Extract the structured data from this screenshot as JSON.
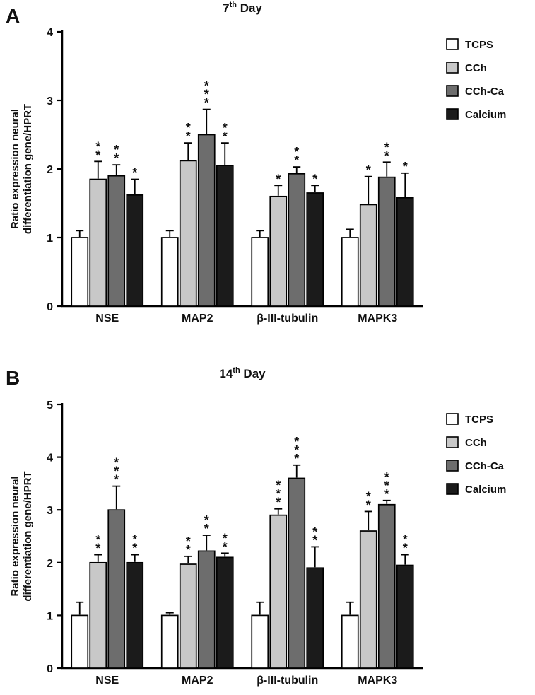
{
  "figure": {
    "description": "Two-panel grouped bar chart of neural differentiation gene expression",
    "panels": [
      {
        "letter": "A",
        "title": "7th Day"
      },
      {
        "letter": "B",
        "title": "14th Day"
      }
    ],
    "legend_items": [
      "TCPS",
      "CCh",
      "CCh-Ca",
      "Calcium"
    ],
    "colors": {
      "TCPS": "#ffffff",
      "CCh": "#c8c8c8",
      "CCh-Ca": "#6d6d6d",
      "Calcium": "#1b1b1b",
      "axis": "#000000"
    }
  },
  "chart_data": [
    {
      "type": "bar",
      "panel": "A",
      "title": "7th Day",
      "title_parts": {
        "base": "7",
        "sup": "th",
        "rest": " Day"
      },
      "ylabel": "Ratio expression neural differentiation gene/HPRT",
      "ylabel_lines": [
        "Ratio expression neural",
        "differentiation gene/HPRT"
      ],
      "xlabel": "",
      "ylim": [
        0,
        4
      ],
      "yticks": [
        0,
        1,
        2,
        3,
        4
      ],
      "grid": false,
      "legend_position": "right",
      "error_bars": true,
      "categories": [
        "NSE",
        "MAP2",
        "β-III-tubulin",
        "MAPK3"
      ],
      "series": [
        {
          "name": "TCPS",
          "color": "#ffffff",
          "values": [
            1.0,
            1.0,
            1.0,
            1.0
          ],
          "errors": [
            0.1,
            0.1,
            0.1,
            0.12
          ],
          "sig": [
            "",
            "",
            "",
            ""
          ]
        },
        {
          "name": "CCh",
          "color": "#c8c8c8",
          "values": [
            1.85,
            2.12,
            1.6,
            1.48
          ],
          "errors": [
            0.26,
            0.26,
            0.16,
            0.41
          ],
          "sig": [
            "**",
            "**",
            "*",
            "*"
          ]
        },
        {
          "name": "CCh-Ca",
          "color": "#6d6d6d",
          "values": [
            1.9,
            2.5,
            1.93,
            1.88
          ],
          "errors": [
            0.16,
            0.37,
            0.1,
            0.22
          ],
          "sig": [
            "**",
            "***",
            "**",
            "**"
          ]
        },
        {
          "name": "Calcium",
          "color": "#1b1b1b",
          "values": [
            1.62,
            2.05,
            1.65,
            1.58
          ],
          "errors": [
            0.23,
            0.33,
            0.11,
            0.36
          ],
          "sig": [
            "*",
            "**",
            "*",
            "*"
          ]
        }
      ]
    },
    {
      "type": "bar",
      "panel": "B",
      "title": "14th Day",
      "title_parts": {
        "base": "14",
        "sup": "th",
        "rest": " Day"
      },
      "ylabel": "Ratio expression neural differentiation gene/HPRT",
      "ylabel_lines": [
        "Ratio expression neural",
        "differentiation gene/HPRT"
      ],
      "xlabel": "",
      "ylim": [
        0,
        5
      ],
      "yticks": [
        0,
        1,
        2,
        3,
        4,
        5
      ],
      "grid": false,
      "legend_position": "right",
      "error_bars": true,
      "categories": [
        "NSE",
        "MAP2",
        "β-III-tubulin",
        "MAPK3"
      ],
      "series": [
        {
          "name": "TCPS",
          "color": "#ffffff",
          "values": [
            1.0,
            1.0,
            1.0,
            1.0
          ],
          "errors": [
            0.25,
            0.05,
            0.25,
            0.25
          ],
          "sig": [
            "",
            "",
            "",
            ""
          ]
        },
        {
          "name": "CCh",
          "color": "#c8c8c8",
          "values": [
            2.0,
            1.97,
            2.9,
            2.6
          ],
          "errors": [
            0.15,
            0.15,
            0.12,
            0.37
          ],
          "sig": [
            "**",
            "**",
            "***",
            "**"
          ]
        },
        {
          "name": "CCh-Ca",
          "color": "#6d6d6d",
          "values": [
            3.0,
            2.22,
            3.6,
            3.1
          ],
          "errors": [
            0.45,
            0.3,
            0.25,
            0.08
          ],
          "sig": [
            "***",
            "**",
            "***",
            "***"
          ]
        },
        {
          "name": "Calcium",
          "color": "#1b1b1b",
          "values": [
            2.0,
            2.1,
            1.9,
            1.95
          ],
          "errors": [
            0.15,
            0.08,
            0.4,
            0.2
          ],
          "sig": [
            "**",
            "**",
            "**",
            "**"
          ]
        }
      ]
    }
  ]
}
